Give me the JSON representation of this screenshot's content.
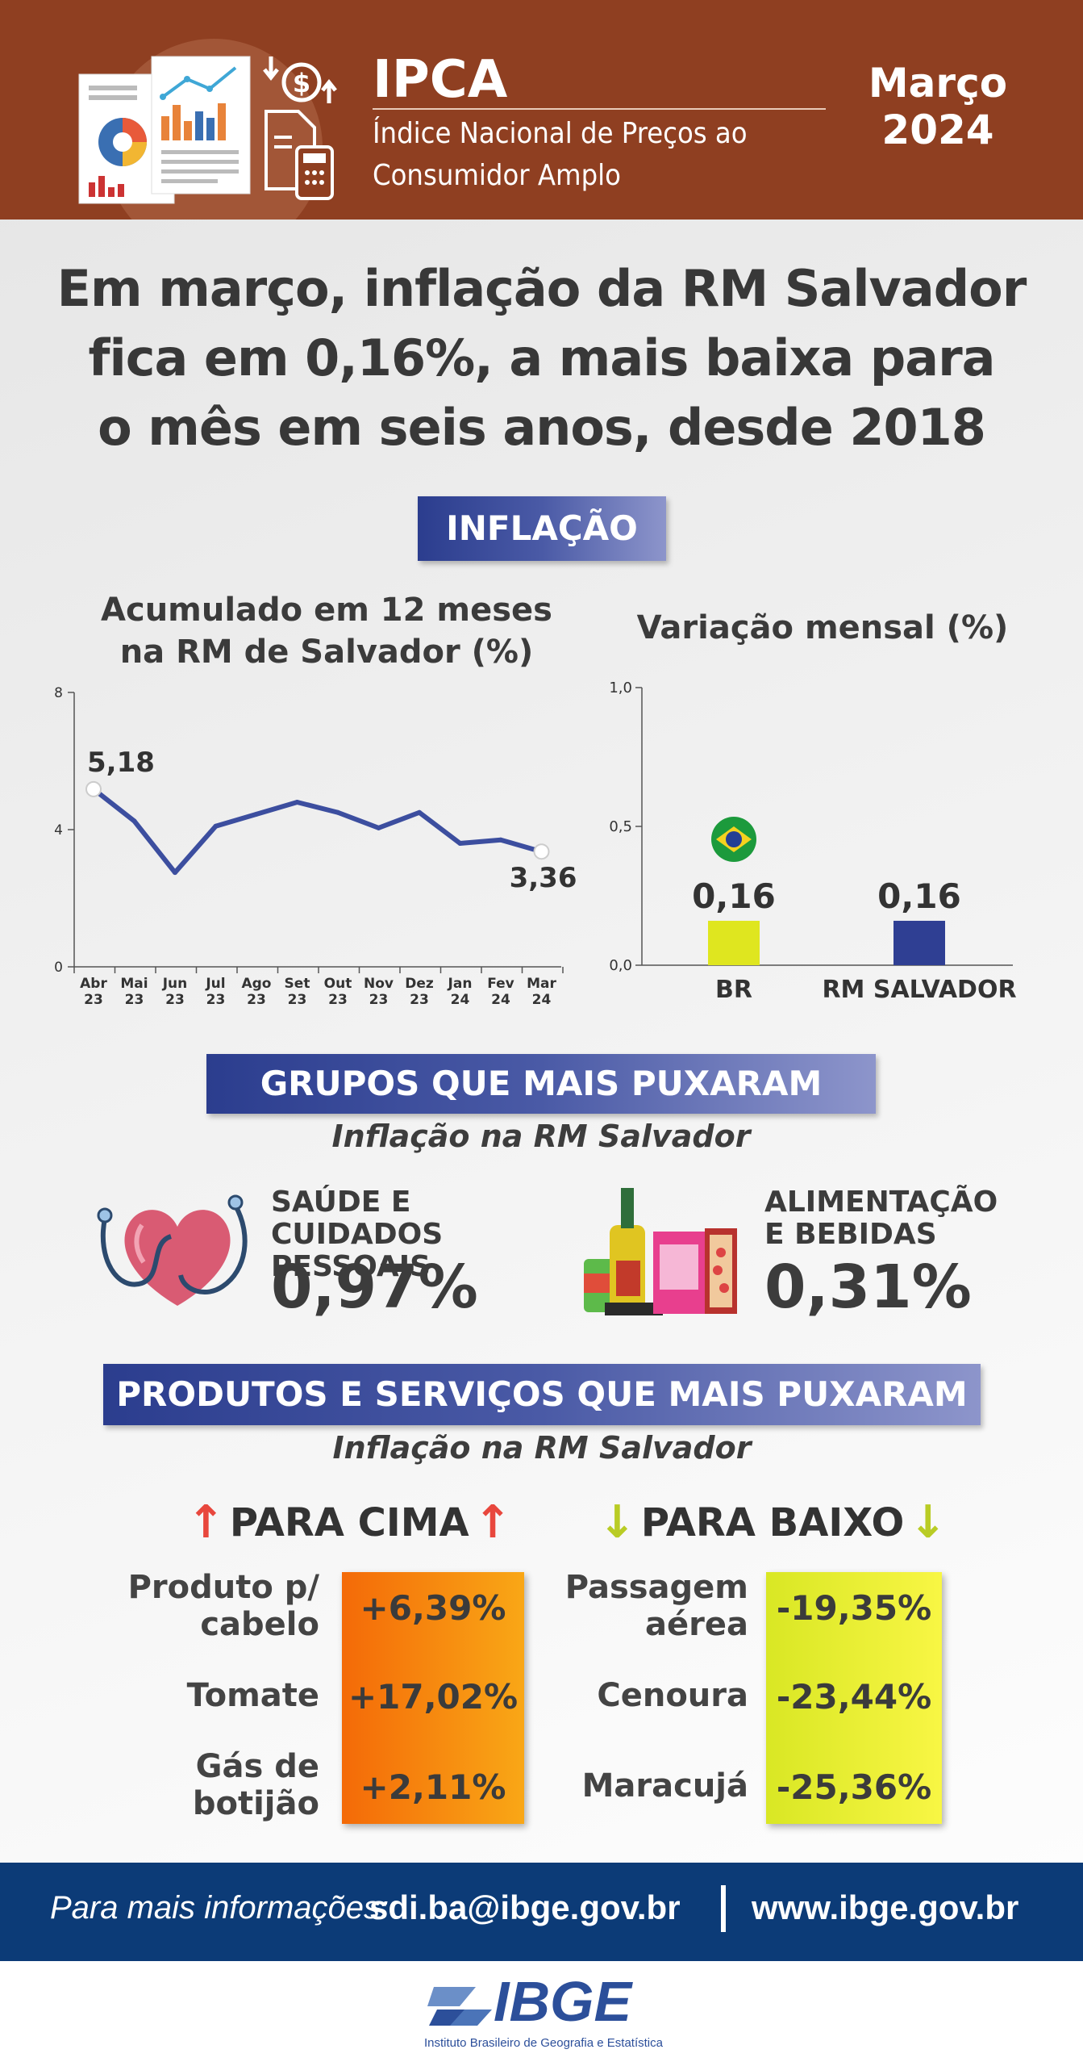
{
  "header": {
    "title": "IPCA",
    "subtitle_line1": "Índice Nacional de Preços ao",
    "subtitle_line2": "Consumidor Amplo",
    "month": "Março",
    "year": "2024"
  },
  "headline": {
    "line1": "Em março, inflação da RM Salvador",
    "line2": "fica em 0,16%, a mais baixa para",
    "line3": "o mês em seis anos, desde 2018"
  },
  "inflacao_banner": "INFLAÇÃO",
  "colors": {
    "header_bg": "#8f3f21",
    "line": "#3c4e9f",
    "bar_br": "#dfe61f",
    "bar_rm": "#2f3f93",
    "footer_bg": "#0c3b77"
  },
  "chart_data": [
    {
      "type": "line",
      "title_line1": "Acumulado em 12 meses",
      "title_line2": "na RM de Salvador (%)",
      "x": [
        "Abr 23",
        "Mai 23",
        "Jun 23",
        "Jul 23",
        "Ago 23",
        "Set 23",
        "Out 23",
        "Nov 23",
        "Dez 23",
        "Jan 24",
        "Fev 24",
        "Mar 24"
      ],
      "x_top": [
        "Abr",
        "Mai",
        "Jun",
        "Jul",
        "Ago",
        "Set",
        "Out",
        "Nov",
        "Dez",
        "Jan",
        "Fev",
        "Mar"
      ],
      "x_bottom": [
        "23",
        "23",
        "23",
        "23",
        "23",
        "23",
        "23",
        "23",
        "23",
        "24",
        "24",
        "24"
      ],
      "values": [
        5.18,
        4.25,
        2.75,
        4.1,
        4.45,
        4.8,
        4.5,
        4.05,
        4.5,
        3.6,
        3.7,
        3.36
      ],
      "yticks": [
        "8",
        "4",
        "0"
      ],
      "ylim": [
        0,
        8
      ],
      "labels": {
        "first": "5,18",
        "last": "3,36"
      }
    },
    {
      "type": "bar",
      "title": "Variação mensal (%)",
      "categories": [
        "BR",
        "RM SALVADOR"
      ],
      "values": [
        0.16,
        0.16
      ],
      "value_labels": [
        "0,16",
        "0,16"
      ],
      "yticks": [
        "1,0",
        "0,5",
        "0,0"
      ],
      "ylim": [
        0,
        1.0
      ]
    }
  ],
  "grupos": {
    "banner": "GRUPOS QUE MAIS PUXARAM",
    "subtitle": "Inflação na RM Salvador",
    "items": [
      {
        "label_line1": "SAÚDE E CUIDADOS",
        "label_line2": "PESSOAIS",
        "value": "0,97%",
        "icon": "health-heart-icon"
      },
      {
        "label_line1": "ALIMENTAÇÃO",
        "label_line2": "E BEBIDAS",
        "value": "0,31%",
        "icon": "food-drinks-icon"
      }
    ]
  },
  "produtos": {
    "banner": "PRODUTOS E SERVIÇOS QUE MAIS PUXARAM",
    "subtitle": "Inflação na RM Salvador",
    "up_label": "PARA CIMA",
    "down_label": "PARA BAIXO",
    "up": [
      {
        "name_line1": "Produto p/",
        "name_line2": "cabelo",
        "value": "+6,39%"
      },
      {
        "name_line1": "Tomate",
        "name_line2": "",
        "value": "+17,02%"
      },
      {
        "name_line1": "Gás de",
        "name_line2": "botijão",
        "value": "+2,11%"
      }
    ],
    "down": [
      {
        "name_line1": "Passagem",
        "name_line2": "aérea",
        "value": "-19,35%"
      },
      {
        "name_line1": "Cenoura",
        "name_line2": "",
        "value": "-23,44%"
      },
      {
        "name_line1": "Maracujá",
        "name_line2": "",
        "value": "-25,36%"
      }
    ]
  },
  "footer": {
    "label": "Para mais informações:",
    "email": "sdi.ba@ibge.gov.br",
    "site": "www.ibge.gov.br",
    "logo_text": "IBGE",
    "logo_full": "Instituto Brasileiro de Geografia e Estatística"
  }
}
